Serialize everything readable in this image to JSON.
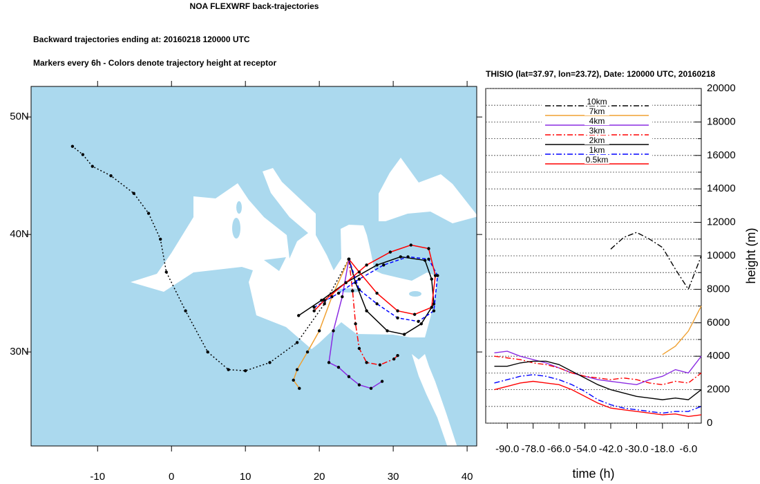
{
  "header": {
    "title": "NOA FLEXWRF back-trajectories",
    "subtitle": "Backward trajectories ending at: 20160218  120000 UTC",
    "note": "Markers every 6h - Colors denote trajectory height at receptor"
  },
  "chart_data": [
    {
      "type": "map",
      "xlim": [
        -19.0,
        41.3
      ],
      "ylim": [
        22.0,
        52.6
      ],
      "xticks": [
        -10,
        0,
        10,
        20,
        30,
        40
      ],
      "yticks": [
        {
          "value": 30,
          "label": "30N"
        },
        {
          "value": 40,
          "label": "40N"
        },
        {
          "value": 50,
          "label": "50N"
        }
      ],
      "series": [
        {
          "color": "#000000",
          "style": "dotted",
          "lon": [
            24.0,
            20.7,
            17.0,
            13.3,
            10.0,
            7.7,
            4.9,
            1.9,
            -0.7,
            -1.5,
            -3.1,
            -5.1,
            -8.2,
            -10.7,
            -12.0,
            -13.4
          ],
          "lat": [
            37.9,
            34.1,
            30.8,
            29.1,
            28.4,
            28.5,
            30.0,
            33.5,
            36.8,
            39.6,
            41.8,
            43.5,
            45.0,
            45.8,
            46.8,
            47.5
          ]
        },
        {
          "color": "#f0a030",
          "style": "solid",
          "lon": [
            24.0,
            21.7,
            20.0,
            18.4,
            17.0,
            16.5,
            17.3
          ],
          "lat": [
            37.9,
            34.7,
            31.8,
            30.0,
            28.5,
            27.6,
            26.9
          ]
        },
        {
          "color": "#8a2be2",
          "style": "solid",
          "lon": [
            24.0,
            23.1,
            21.9,
            21.3,
            22.6,
            24.0,
            25.4,
            27.0,
            28.5
          ],
          "lat": [
            37.9,
            34.7,
            31.8,
            29.1,
            28.7,
            27.9,
            27.2,
            26.9,
            27.5
          ]
        },
        {
          "color": "#ff0000",
          "style": "dashdot",
          "lon": [
            24.0,
            24.5,
            24.9,
            25.4,
            26.4,
            28.2,
            30.1,
            30.6
          ],
          "lat": [
            37.9,
            35.2,
            32.4,
            30.3,
            29.1,
            28.9,
            29.4,
            29.7
          ]
        },
        {
          "color": "#000000",
          "style": "solid",
          "lon": [
            24.0,
            24.9,
            26.4,
            29.2,
            31.5,
            33.8,
            35.5,
            35.2,
            34.3,
            31.0,
            27.8,
            23.6,
            20.3,
            17.2
          ],
          "lat": [
            37.9,
            35.9,
            33.5,
            31.8,
            31.5,
            32.4,
            34.1,
            36.2,
            37.8,
            38.1,
            37.4,
            35.9,
            34.4,
            33.1
          ]
        },
        {
          "color": "#0000ff",
          "style": "dashed",
          "lon": [
            24.0,
            25.4,
            27.8,
            30.6,
            33.4,
            35.5,
            36.0,
            34.8,
            32.0,
            28.7,
            25.4,
            22.6,
            19.3
          ],
          "lat": [
            37.9,
            35.3,
            34.1,
            32.9,
            32.6,
            33.5,
            36.5,
            37.9,
            38.1,
            37.4,
            36.2,
            35.0,
            33.8
          ]
        },
        {
          "color": "#ff0000",
          "style": "solid",
          "lon": [
            24.0,
            25.4,
            27.8,
            30.6,
            32.9,
            35.2,
            35.7,
            34.8,
            32.4,
            29.6,
            26.4,
            23.6,
            20.7,
            19.3
          ],
          "lat": [
            37.9,
            36.8,
            35.0,
            33.5,
            33.2,
            33.8,
            36.5,
            38.8,
            39.1,
            38.5,
            37.4,
            35.9,
            34.4,
            33.5
          ]
        }
      ]
    },
    {
      "type": "line",
      "title": "THISIO (lat=37.97,  lon=23.72), Date: 120000 UTC, 20160218",
      "xlabel": "time (h)",
      "ylabel": "height (m)",
      "xlim": [
        -100,
        0
      ],
      "ylim": [
        0,
        20000
      ],
      "xticks": [
        {
          "value": -90,
          "label": "-90.0"
        },
        {
          "value": -78,
          "label": "-78.0"
        },
        {
          "value": -66,
          "label": "-66.0"
        },
        {
          "value": -54,
          "label": "-54.0"
        },
        {
          "value": -42,
          "label": "-42.0"
        },
        {
          "value": -30,
          "label": "-30.0"
        },
        {
          "value": -18,
          "label": "-18.0"
        },
        {
          "value": -6,
          "label": "-6.0"
        }
      ],
      "yticks": [
        0,
        2000,
        4000,
        6000,
        8000,
        10000,
        12000,
        14000,
        16000,
        18000,
        20000
      ],
      "minor_yticks": [
        1000,
        3000,
        5000,
        7000,
        9000,
        11000,
        13000,
        15000,
        17000,
        19000
      ],
      "grid": true,
      "legend": "upper center",
      "x": [
        -96,
        -90,
        -84,
        -78,
        -72,
        -66,
        -60,
        -54,
        -48,
        -42,
        -36,
        -30,
        -24,
        -18,
        -12,
        -6,
        0
      ],
      "series": [
        {
          "name": "10km",
          "color": "#000000",
          "style": "dashdot",
          "values": [
            null,
            null,
            null,
            null,
            null,
            null,
            null,
            null,
            null,
            10400,
            11100,
            11400,
            11000,
            10500,
            9200,
            8000,
            10000
          ]
        },
        {
          "name": "7km",
          "color": "#f0a030",
          "style": "solid",
          "values": [
            null,
            null,
            null,
            null,
            null,
            null,
            null,
            null,
            null,
            null,
            null,
            null,
            null,
            4100,
            4600,
            5500,
            7000
          ]
        },
        {
          "name": "4km",
          "color": "#8a2be2",
          "style": "solid",
          "values": [
            4200,
            4300,
            4000,
            3800,
            3600,
            3300,
            3000,
            2800,
            2600,
            2500,
            2400,
            2300,
            2600,
            2800,
            3200,
            3000,
            4000
          ]
        },
        {
          "name": "3km",
          "color": "#ff0000",
          "style": "dashdot",
          "values": [
            4000,
            3900,
            3800,
            3600,
            3500,
            3300,
            3000,
            2800,
            2700,
            2600,
            2700,
            2600,
            2400,
            2300,
            2500,
            2400,
            3000
          ]
        },
        {
          "name": "2km",
          "color": "#000000",
          "style": "solid",
          "values": [
            3400,
            3400,
            3600,
            3700,
            3700,
            3500,
            3100,
            2700,
            2300,
            2000,
            1800,
            1600,
            1500,
            1400,
            1500,
            1400,
            2000
          ]
        },
        {
          "name": "1km",
          "color": "#0000ff",
          "style": "dashdot",
          "values": [
            2400,
            2600,
            2800,
            2900,
            2800,
            2600,
            2300,
            1900,
            1400,
            1100,
            900,
            800,
            700,
            600,
            700,
            700,
            1000
          ]
        },
        {
          "name": "0.5km",
          "color": "#ff0000",
          "style": "solid",
          "values": [
            2000,
            2200,
            2400,
            2500,
            2400,
            2300,
            2000,
            1600,
            1200,
            900,
            800,
            700,
            600,
            500,
            550,
            400,
            500
          ]
        }
      ]
    }
  ]
}
